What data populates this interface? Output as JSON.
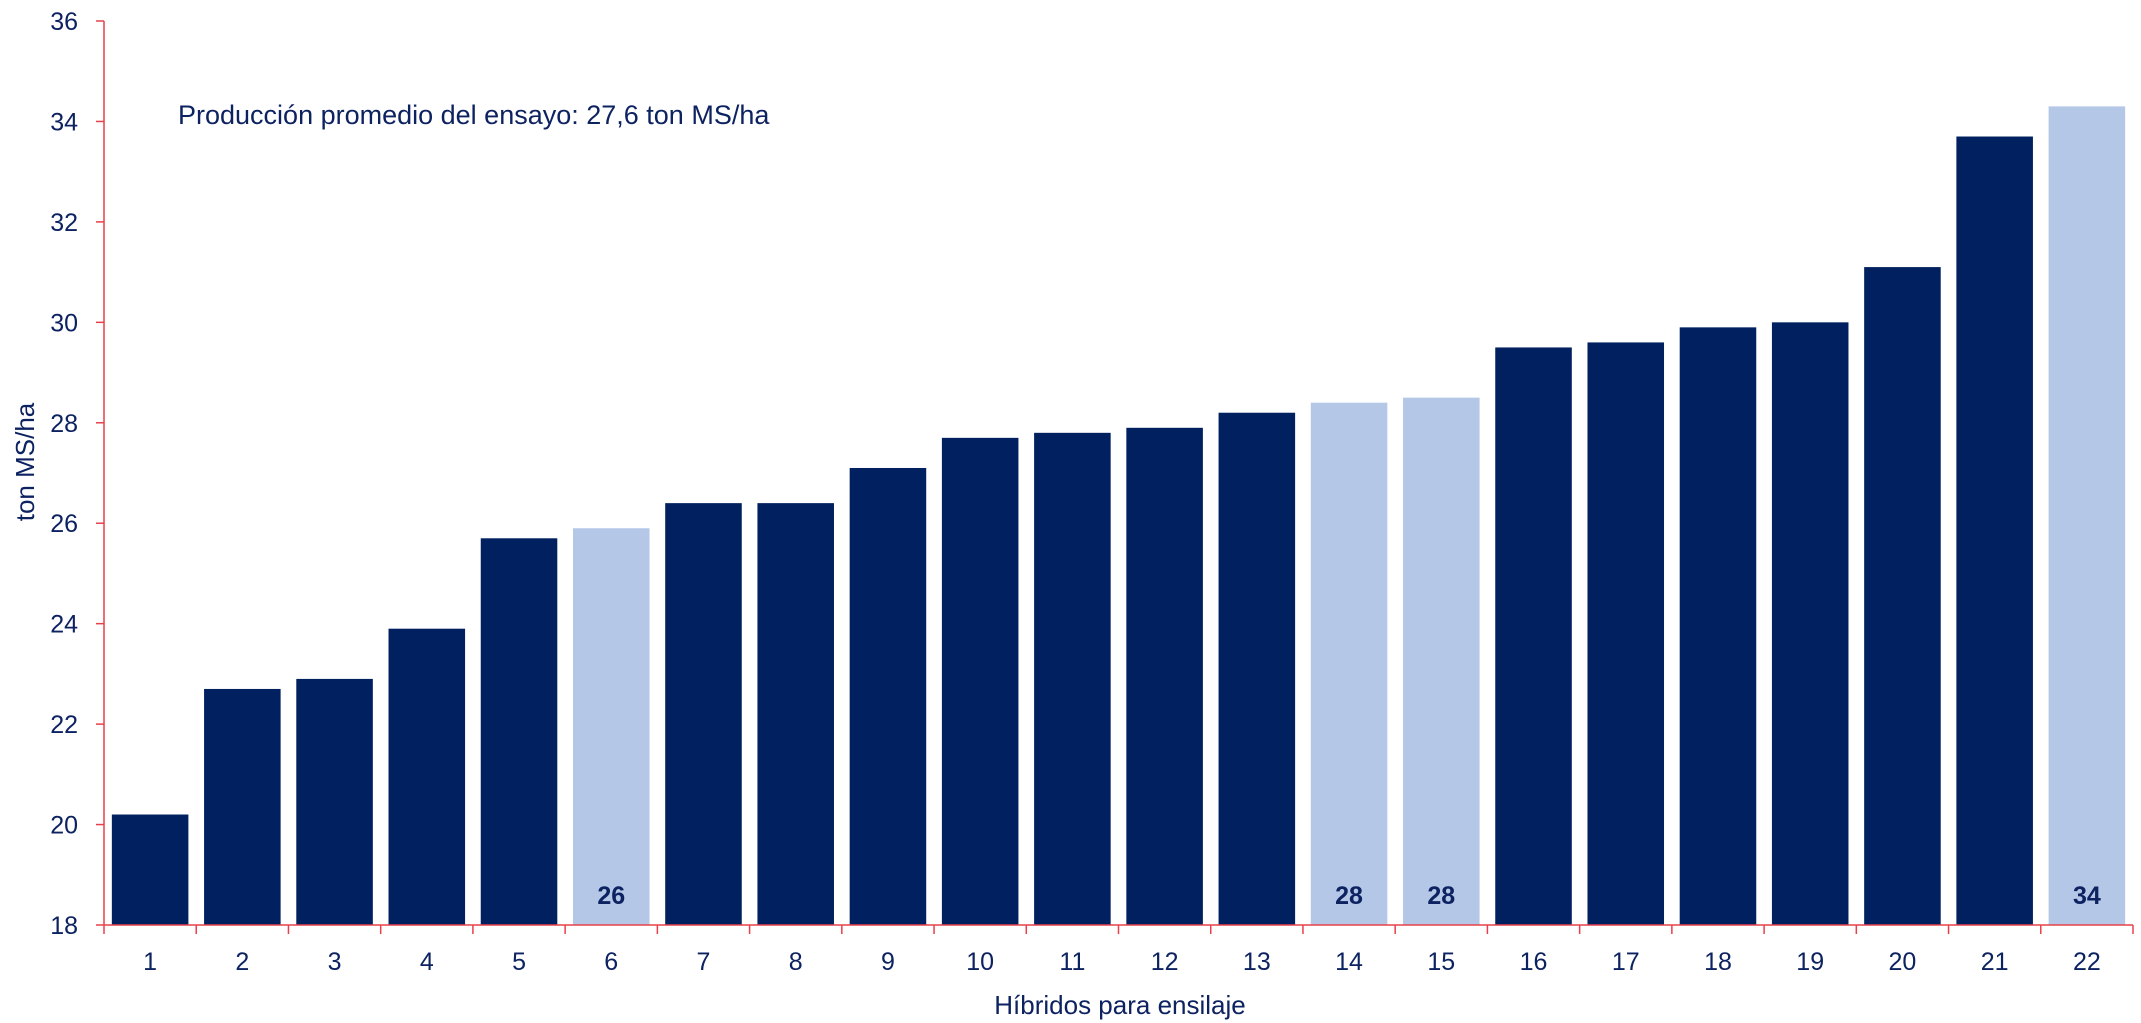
{
  "chart_data": {
    "type": "bar",
    "categories": [
      "1",
      "2",
      "3",
      "4",
      "5",
      "6",
      "7",
      "8",
      "9",
      "10",
      "11",
      "12",
      "13",
      "14",
      "15",
      "16",
      "17",
      "18",
      "19",
      "20",
      "21",
      "22"
    ],
    "values": [
      20.2,
      22.7,
      22.9,
      23.9,
      25.7,
      25.9,
      26.4,
      26.4,
      27.1,
      27.7,
      27.8,
      27.9,
      28.2,
      28.4,
      28.5,
      29.5,
      29.6,
      29.9,
      30.0,
      31.1,
      33.7,
      34.3
    ],
    "highlighted": [
      false,
      false,
      false,
      false,
      false,
      true,
      false,
      false,
      false,
      false,
      false,
      false,
      false,
      true,
      true,
      false,
      false,
      false,
      false,
      false,
      false,
      true
    ],
    "data_labels": [
      "",
      "",
      "",
      "",
      "",
      "26",
      "",
      "",
      "",
      "",
      "",
      "",
      "",
      "28",
      "28",
      "",
      "",
      "",
      "",
      "",
      "",
      "34"
    ],
    "title": "",
    "xlabel": "Híbridos para ensilaje",
    "ylabel": "ton MS/ha",
    "ylim": [
      18,
      36
    ],
    "yticks": [
      "18",
      "20",
      "22",
      "24",
      "26",
      "28",
      "30",
      "32",
      "34",
      "36"
    ],
    "annotation": "Producción promedio del ensayo: 27,6 ton MS/ha",
    "grid": false,
    "legend": "none",
    "colors": {
      "bar": "#002060",
      "highlight": "#b4c7e7",
      "axis": "#e8404a",
      "text": "#0d2260"
    }
  }
}
